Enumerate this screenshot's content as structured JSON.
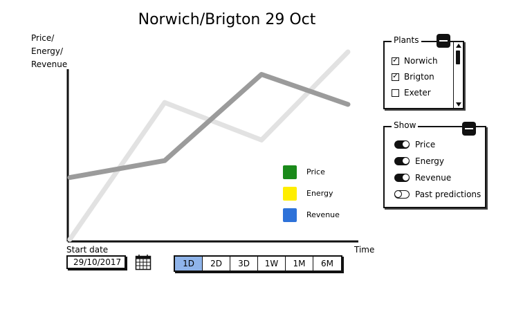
{
  "title": "Norwich/Brigton 29 Oct",
  "axis": {
    "y_label": "Price/ Energy/ Revenue",
    "x_label": "Time"
  },
  "chart_data": {
    "type": "line",
    "series": [
      {
        "color": "#9b9b9b",
        "values": [
          0.33,
          0.42,
          0.88,
          0.72
        ]
      },
      {
        "color": "#e2e2e2",
        "values": [
          0.0,
          0.73,
          0.53,
          1.0
        ]
      }
    ],
    "ylim": [
      0,
      1
    ],
    "grid": false
  },
  "legend": [
    {
      "label": "Price",
      "color": "#1a8a1a"
    },
    {
      "label": "Energy",
      "color": "#ffee00"
    },
    {
      "label": "Revenue",
      "color": "#2e72d9"
    }
  ],
  "start_date": {
    "label": "Start date",
    "value": "29/10/2017"
  },
  "ranges": [
    {
      "label": "1D",
      "active": true
    },
    {
      "label": "2D",
      "active": false
    },
    {
      "label": "3D",
      "active": false
    },
    {
      "label": "1W",
      "active": false
    },
    {
      "label": "1M",
      "active": false
    },
    {
      "label": "6M",
      "active": false
    }
  ],
  "plants": {
    "title": "Plants",
    "items": [
      {
        "label": "Norwich",
        "checked": true
      },
      {
        "label": "Brigton",
        "checked": true
      },
      {
        "label": "Exeter",
        "checked": false
      }
    ]
  },
  "show": {
    "title": "Show",
    "items": [
      {
        "label": "Price",
        "on": true
      },
      {
        "label": "Energy",
        "on": true
      },
      {
        "label": "Revenue",
        "on": true
      },
      {
        "label": "Past predictions",
        "on": false
      }
    ]
  },
  "icons": {
    "calendar": "calendar-icon",
    "collapse": "minus-icon"
  }
}
